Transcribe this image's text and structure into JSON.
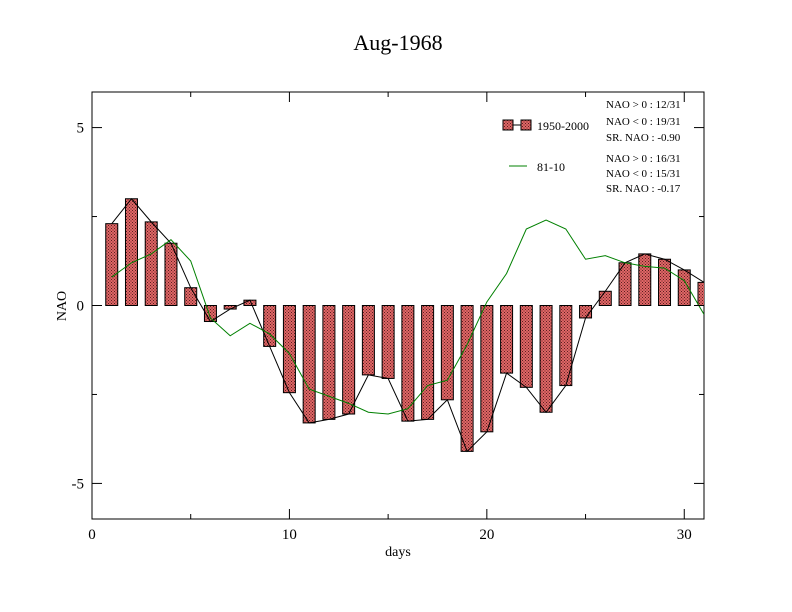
{
  "chart_data": {
    "type": "bar",
    "title": "Aug-1968",
    "xlabel": "days",
    "ylabel": "NAO",
    "xlim": [
      0,
      31
    ],
    "ylim": [
      -6,
      6
    ],
    "xticks": [
      0,
      10,
      20,
      30
    ],
    "yticks": [
      -5,
      0,
      5
    ],
    "xtick_labels": [
      "0",
      "10",
      "20",
      "30"
    ],
    "ytick_labels": [
      "-5",
      "0",
      "5"
    ],
    "grid": false,
    "legend_position": "top-right",
    "x": [
      1,
      2,
      3,
      4,
      5,
      6,
      7,
      8,
      9,
      10,
      11,
      12,
      13,
      14,
      15,
      16,
      17,
      18,
      19,
      20,
      21,
      22,
      23,
      24,
      25,
      26,
      27,
      28,
      29,
      30,
      31
    ],
    "series": [
      {
        "name": "1950-2000",
        "kind": "bar",
        "color": "#e06666",
        "values": [
          2.3,
          3.0,
          2.35,
          1.75,
          0.5,
          -0.45,
          -0.1,
          0.15,
          -1.15,
          -2.45,
          -3.3,
          -3.2,
          -3.05,
          -1.95,
          -2.05,
          -3.25,
          -3.2,
          -2.65,
          -4.1,
          -3.55,
          -1.9,
          -2.3,
          -3.0,
          -2.25,
          -0.35,
          0.4,
          1.2,
          1.45,
          1.3,
          1.0,
          0.65
        ]
      },
      {
        "name": "81-10",
        "kind": "line",
        "color": "#008000",
        "values": [
          0.8,
          1.2,
          1.45,
          1.85,
          1.25,
          -0.35,
          -0.85,
          -0.5,
          -0.8,
          -1.35,
          -2.35,
          -2.55,
          -2.75,
          -3.0,
          -3.05,
          -2.9,
          -2.25,
          -2.1,
          -1.1,
          0.1,
          0.9,
          2.15,
          2.4,
          2.15,
          1.3,
          1.4,
          1.2,
          1.1,
          1.05,
          0.7,
          -0.25
        ]
      }
    ],
    "stats": [
      {
        "series": "1950-2000",
        "lines": [
          "NAO > 0 : 12/31",
          "NAO < 0 : 19/31",
          "SR. NAO : -0.90"
        ]
      },
      {
        "series": "81-10",
        "lines": [
          "NAO > 0 : 16/31",
          "NAO < 0 : 15/31",
          "SR. NAO : -0.17"
        ]
      }
    ]
  }
}
